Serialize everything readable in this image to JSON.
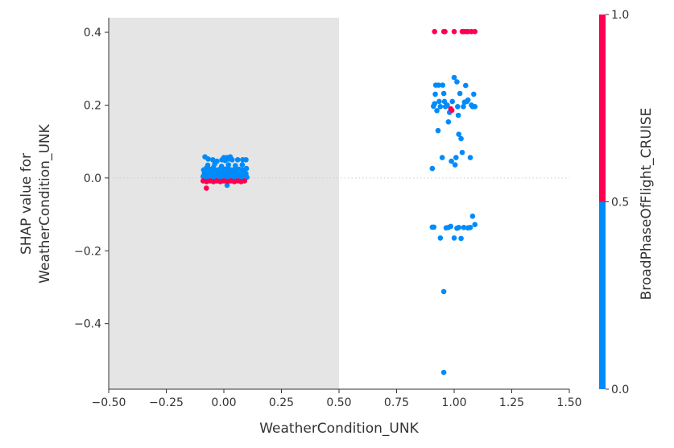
{
  "chart_data": {
    "type": "scatter",
    "title": "",
    "xlabel": "WeatherCondition_UNK",
    "ylabel_lines": [
      "SHAP value for",
      "WeatherCondition_UNK"
    ],
    "xlim": [
      -0.5,
      1.5
    ],
    "ylim": [
      -0.58,
      0.44
    ],
    "x_ticks": [
      -0.5,
      -0.25,
      0.0,
      0.25,
      0.5,
      0.75,
      1.0,
      1.25,
      1.5
    ],
    "x_tick_labels": [
      "−0.50",
      "−0.25",
      "0.00",
      "0.25",
      "0.50",
      "0.75",
      "1.00",
      "1.25",
      "1.50"
    ],
    "y_ticks": [
      -0.4,
      -0.2,
      0.0,
      0.2,
      0.4
    ],
    "y_tick_labels": [
      "−0.4",
      "−0.2",
      "0.0",
      "0.2",
      "0.4"
    ],
    "grid": false,
    "background_shade": {
      "x_from": -0.5,
      "x_to": 0.5,
      "color": "#e5e5e5"
    },
    "zero_line": {
      "y": 0.0,
      "style": "dotted",
      "color": "#cccccc"
    },
    "colors": {
      "low": "#008bfb",
      "high": "#ff0051",
      "axis": "#333333"
    },
    "colorbar": {
      "label": "BroadPhaseOfFlight_CRUISE",
      "ticks": [
        0.0,
        0.5,
        1.0
      ],
      "tick_labels": [
        "0.0",
        "0.5",
        "1.0"
      ]
    },
    "series": [
      {
        "color_value": 0.0,
        "points": [
          [
            -0.09,
            0.004
          ],
          [
            -0.085,
            0.012
          ],
          [
            -0.08,
            0.0
          ],
          [
            -0.076,
            0.016
          ],
          [
            -0.072,
            0.008
          ],
          [
            -0.068,
            0.002
          ],
          [
            -0.064,
            0.012
          ],
          [
            -0.06,
            0.018
          ],
          [
            -0.056,
            0.005
          ],
          [
            -0.052,
            0.0
          ],
          [
            -0.048,
            0.014
          ],
          [
            -0.044,
            0.008
          ],
          [
            -0.04,
            0.002
          ],
          [
            -0.036,
            0.016
          ],
          [
            -0.032,
            0.01
          ],
          [
            -0.028,
            0.004
          ],
          [
            -0.024,
            0.014
          ],
          [
            -0.02,
            0.0
          ],
          [
            -0.016,
            0.008
          ],
          [
            -0.012,
            0.018
          ],
          [
            -0.008,
            0.004
          ],
          [
            -0.004,
            0.012
          ],
          [
            0.0,
            0.0
          ],
          [
            0.004,
            0.016
          ],
          [
            0.008,
            0.006
          ],
          [
            0.012,
            0.012
          ],
          [
            0.016,
            0.002
          ],
          [
            0.02,
            0.018
          ],
          [
            0.024,
            0.008
          ],
          [
            0.028,
            0.0
          ],
          [
            0.032,
            0.014
          ],
          [
            0.036,
            0.004
          ],
          [
            0.04,
            0.01
          ],
          [
            0.044,
            0.018
          ],
          [
            0.048,
            0.002
          ],
          [
            0.052,
            0.012
          ],
          [
            0.056,
            0.006
          ],
          [
            0.06,
            0.016
          ],
          [
            0.064,
            0.0
          ],
          [
            0.068,
            0.01
          ],
          [
            0.072,
            0.004
          ],
          [
            0.076,
            0.014
          ],
          [
            0.08,
            0.008
          ],
          [
            0.084,
            0.0
          ],
          [
            0.088,
            0.016
          ],
          [
            0.092,
            0.006
          ],
          [
            0.096,
            0.012
          ],
          [
            0.1,
            0.002
          ],
          [
            -0.088,
            0.022
          ],
          [
            -0.078,
            0.026
          ],
          [
            -0.062,
            0.024
          ],
          [
            -0.046,
            0.028
          ],
          [
            -0.03,
            0.022
          ],
          [
            -0.014,
            0.026
          ],
          [
            0.002,
            0.024
          ],
          [
            0.018,
            0.028
          ],
          [
            0.034,
            0.022
          ],
          [
            0.05,
            0.026
          ],
          [
            0.066,
            0.024
          ],
          [
            0.082,
            0.022
          ],
          [
            0.098,
            0.026
          ],
          [
            -0.084,
            -0.006
          ],
          [
            -0.066,
            -0.004
          ],
          [
            -0.05,
            -0.008
          ],
          [
            -0.034,
            -0.006
          ],
          [
            -0.018,
            -0.004
          ],
          [
            0.006,
            -0.006
          ],
          [
            0.022,
            -0.008
          ],
          [
            0.038,
            -0.004
          ],
          [
            0.054,
            -0.006
          ],
          [
            0.07,
            -0.008
          ],
          [
            0.09,
            -0.004
          ],
          [
            0.014,
            -0.02
          ],
          [
            -0.07,
            0.035
          ],
          [
            -0.04,
            0.038
          ],
          [
            -0.01,
            0.032
          ],
          [
            0.02,
            0.036
          ],
          [
            0.05,
            0.034
          ],
          [
            0.08,
            0.036
          ],
          [
            -0.082,
            0.058
          ],
          [
            -0.068,
            0.052
          ],
          [
            -0.048,
            0.05
          ],
          [
            -0.03,
            0.046
          ],
          [
            -0.008,
            0.05
          ],
          [
            0.0,
            0.056
          ],
          [
            0.006,
            0.048
          ],
          [
            0.014,
            0.056
          ],
          [
            0.02,
            0.052
          ],
          [
            0.028,
            0.058
          ],
          [
            0.036,
            0.05
          ],
          [
            0.06,
            0.05
          ],
          [
            0.082,
            0.05
          ],
          [
            0.096,
            0.05
          ],
          [
            0.905,
            0.026
          ],
          [
            0.91,
            0.197
          ],
          [
            0.915,
            0.204
          ],
          [
            0.918,
            0.23
          ],
          [
            0.92,
            0.255
          ],
          [
            0.925,
            0.185
          ],
          [
            0.93,
            0.13
          ],
          [
            0.932,
            0.255
          ],
          [
            0.935,
            0.21
          ],
          [
            0.94,
            0.196
          ],
          [
            0.948,
            0.056
          ],
          [
            0.95,
            0.255
          ],
          [
            0.955,
            0.232
          ],
          [
            0.958,
            0.21
          ],
          [
            0.962,
            0.196
          ],
          [
            0.97,
            0.2
          ],
          [
            0.975,
            0.154
          ],
          [
            0.98,
            0.18
          ],
          [
            0.988,
            0.046
          ],
          [
            0.992,
            0.21
          ],
          [
            1.0,
            0.276
          ],
          [
            1.004,
            0.036
          ],
          [
            1.008,
            0.056
          ],
          [
            1.012,
            0.264
          ],
          [
            1.015,
            0.196
          ],
          [
            1.018,
            0.172
          ],
          [
            1.02,
            0.12
          ],
          [
            1.025,
            0.232
          ],
          [
            1.03,
            0.108
          ],
          [
            1.035,
            0.07
          ],
          [
            1.04,
            0.196
          ],
          [
            1.045,
            0.208
          ],
          [
            1.05,
            0.254
          ],
          [
            1.055,
            0.21
          ],
          [
            1.06,
            0.214
          ],
          [
            1.07,
            0.056
          ],
          [
            1.075,
            0.2
          ],
          [
            1.08,
            0.196
          ],
          [
            1.085,
            0.23
          ],
          [
            1.09,
            0.196
          ],
          [
            0.905,
            -0.135
          ],
          [
            0.912,
            -0.135
          ],
          [
            0.94,
            -0.165
          ],
          [
            0.965,
            -0.137
          ],
          [
            0.975,
            -0.136
          ],
          [
            0.985,
            -0.133
          ],
          [
            1.0,
            -0.165
          ],
          [
            1.012,
            -0.138
          ],
          [
            1.02,
            -0.136
          ],
          [
            1.03,
            -0.166
          ],
          [
            1.042,
            -0.136
          ],
          [
            1.06,
            -0.137
          ],
          [
            1.07,
            -0.136
          ],
          [
            1.08,
            -0.105
          ],
          [
            1.09,
            -0.128
          ],
          [
            0.955,
            -0.312
          ],
          [
            0.955,
            -0.534
          ]
        ]
      },
      {
        "color_value": 1.0,
        "points": [
          [
            -0.09,
            -0.008
          ],
          [
            -0.075,
            -0.01
          ],
          [
            -0.06,
            -0.008
          ],
          [
            -0.045,
            -0.01
          ],
          [
            -0.03,
            -0.008
          ],
          [
            -0.015,
            -0.01
          ],
          [
            0.0,
            -0.008
          ],
          [
            0.015,
            -0.01
          ],
          [
            0.03,
            -0.008
          ],
          [
            0.045,
            -0.01
          ],
          [
            0.06,
            -0.008
          ],
          [
            0.075,
            -0.01
          ],
          [
            0.09,
            -0.008
          ],
          [
            -0.076,
            -0.028
          ],
          [
            0.915,
            0.402
          ],
          [
            0.955,
            0.402
          ],
          [
            0.96,
            0.402
          ],
          [
            1.0,
            0.402
          ],
          [
            1.035,
            0.402
          ],
          [
            1.04,
            0.402
          ],
          [
            1.05,
            0.402
          ],
          [
            1.06,
            0.402
          ],
          [
            1.075,
            0.402
          ],
          [
            1.09,
            0.402
          ],
          [
            0.985,
            0.19
          ],
          [
            0.99,
            0.186
          ]
        ]
      }
    ]
  }
}
